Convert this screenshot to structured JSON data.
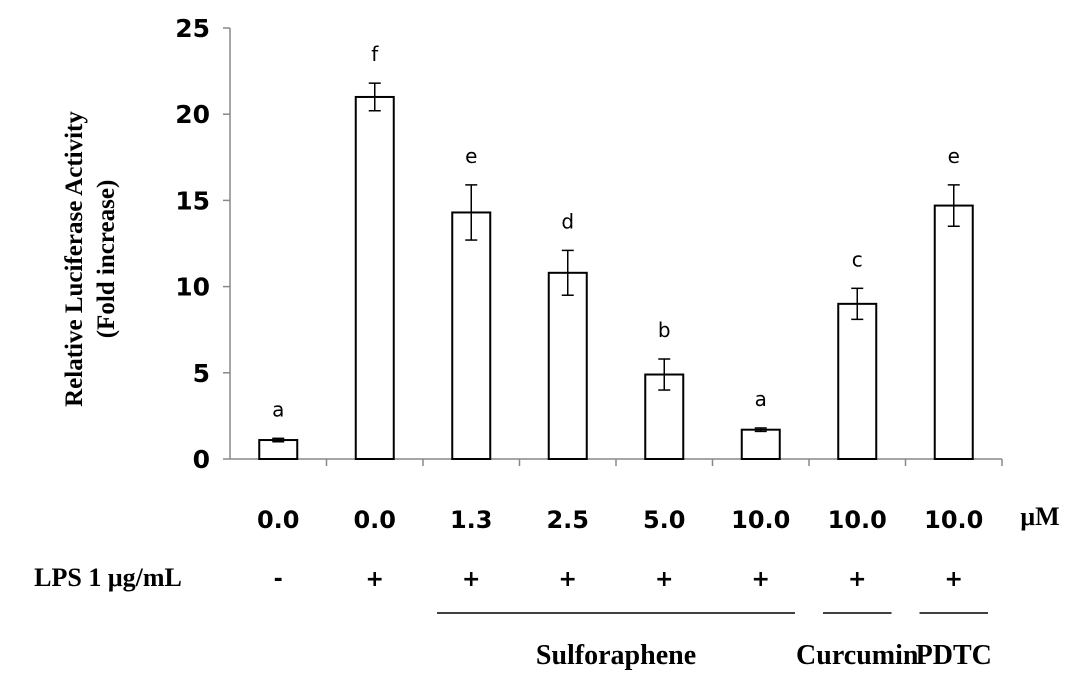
{
  "chart_data": {
    "type": "bar",
    "ylabel_line1": "Relative Luciferase Activity",
    "ylabel_line2": "(Fold increase)",
    "ylim": [
      0,
      25
    ],
    "yticks": [
      "0",
      "5",
      "10",
      "15",
      "20",
      "25"
    ],
    "categories": [
      "0.0",
      "0.0",
      "1.3",
      "2.5",
      "5.0",
      "10.0",
      "10.0",
      "10.0"
    ],
    "unit_label": "μM",
    "values": [
      1.1,
      21.0,
      14.3,
      10.8,
      4.9,
      1.7,
      9.0,
      14.7
    ],
    "errors": [
      0.1,
      0.8,
      1.6,
      1.3,
      0.9,
      0.1,
      0.9,
      1.2
    ],
    "significance_letters": [
      "a",
      "f",
      "e",
      "d",
      "b",
      "a",
      "c",
      "e"
    ],
    "bar_fill": "#ffffff",
    "bar_stroke": "#000000",
    "grid": false,
    "lps": {
      "label": "LPS 1 μg/mL",
      "signs": [
        "-",
        "+",
        "+",
        "+",
        "+",
        "+",
        "+",
        "+"
      ]
    },
    "groups": [
      {
        "label": "Sulforaphene",
        "from": 2,
        "to": 5
      },
      {
        "label": "Curcumin",
        "from": 6,
        "to": 6
      },
      {
        "label": "PDTC",
        "from": 7,
        "to": 7
      }
    ]
  }
}
